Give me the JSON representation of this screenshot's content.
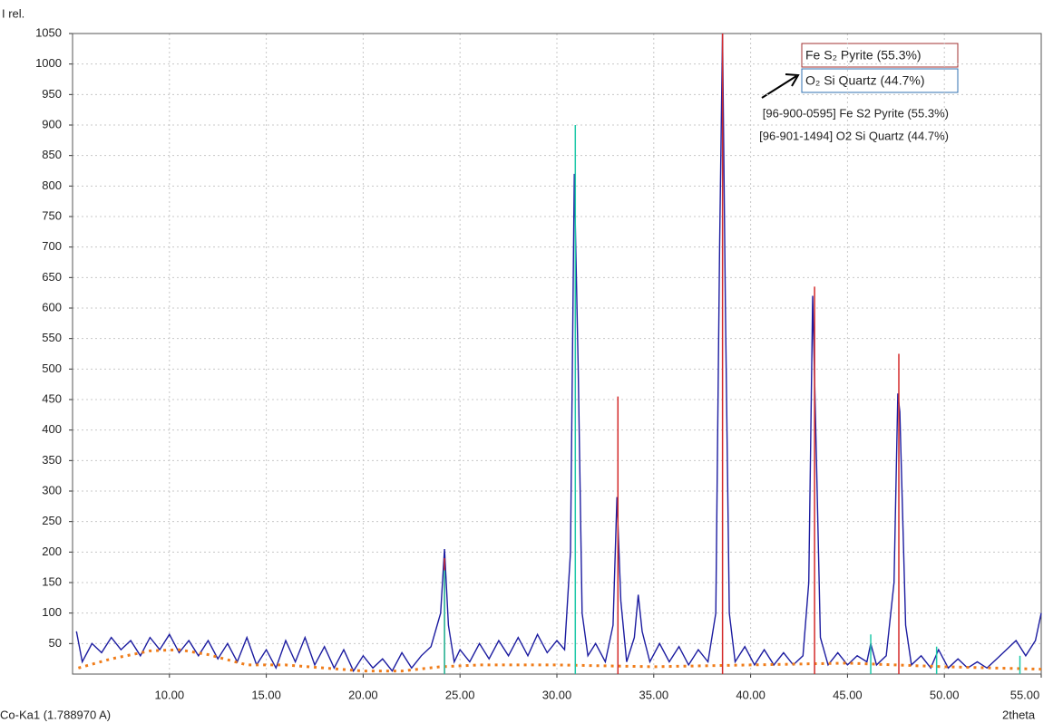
{
  "chart_data": {
    "type": "line",
    "y_label": "I rel.",
    "x_label": "2theta",
    "source_label": "Co-Ka1 (1.788970 A)",
    "xlim": [
      5,
      55
    ],
    "ylim": [
      0,
      1050
    ],
    "xticks": [
      {
        "value": 10,
        "label": "10.00"
      },
      {
        "value": 15,
        "label": "15.00"
      },
      {
        "value": 20,
        "label": "20.00"
      },
      {
        "value": 25,
        "label": "25.00"
      },
      {
        "value": 30,
        "label": "30.00"
      },
      {
        "value": 35,
        "label": "35.00"
      },
      {
        "value": 40,
        "label": "40.00"
      },
      {
        "value": 45,
        "label": "45.00"
      },
      {
        "value": 50,
        "label": "50.00"
      },
      {
        "value": 55,
        "label": "55.00"
      }
    ],
    "yticks": [
      50,
      100,
      150,
      200,
      250,
      300,
      350,
      400,
      450,
      500,
      550,
      600,
      650,
      700,
      750,
      800,
      850,
      900,
      950,
      1000,
      1050
    ],
    "grid": true,
    "series": [
      {
        "color": "#1c1ca0",
        "x": [
          5.2,
          5.5,
          6,
          6.5,
          7,
          7.5,
          8,
          8.5,
          9,
          9.5,
          10,
          10.5,
          11,
          11.5,
          12,
          12.5,
          13,
          13.5,
          14,
          14.5,
          15,
          15.5,
          16,
          16.5,
          17,
          17.5,
          18,
          18.5,
          19,
          19.5,
          20,
          20.5,
          21,
          21.5,
          22,
          22.5,
          23,
          23.5,
          24,
          24.2,
          24.4,
          24.7,
          25,
          25.5,
          26,
          26.5,
          27,
          27.5,
          28,
          28.5,
          29,
          29.5,
          30,
          30.4,
          30.7,
          30.9,
          31.1,
          31.3,
          31.6,
          32,
          32.5,
          32.9,
          33.1,
          33.3,
          33.6,
          34,
          34.2,
          34.4,
          34.8,
          35.3,
          35.8,
          36.3,
          36.8,
          37.3,
          37.8,
          38.2,
          38.4,
          38.55,
          38.7,
          38.9,
          39.2,
          39.7,
          40.2,
          40.7,
          41.2,
          41.7,
          42.2,
          42.7,
          43,
          43.2,
          43.4,
          43.6,
          44,
          44.5,
          45,
          45.5,
          46,
          46.2,
          46.5,
          47,
          47.4,
          47.6,
          47.7,
          48,
          48.3,
          48.8,
          49.3,
          49.7,
          50.2,
          50.7,
          51.2,
          51.7,
          52.2,
          52.7,
          53.2,
          53.7,
          54.2,
          54.7,
          55
        ],
        "values": [
          70,
          20,
          50,
          35,
          60,
          40,
          55,
          30,
          60,
          40,
          65,
          35,
          55,
          30,
          55,
          25,
          50,
          20,
          60,
          15,
          40,
          10,
          55,
          20,
          60,
          15,
          45,
          10,
          40,
          5,
          30,
          10,
          25,
          5,
          35,
          10,
          30,
          45,
          100,
          205,
          80,
          20,
          40,
          20,
          50,
          25,
          55,
          30,
          60,
          30,
          65,
          35,
          55,
          40,
          200,
          820,
          500,
          100,
          30,
          50,
          20,
          80,
          290,
          120,
          20,
          60,
          130,
          70,
          20,
          50,
          20,
          45,
          15,
          40,
          20,
          100,
          700,
          1050,
          600,
          100,
          20,
          45,
          15,
          40,
          15,
          35,
          15,
          30,
          150,
          620,
          350,
          60,
          15,
          35,
          15,
          30,
          20,
          50,
          15,
          30,
          150,
          460,
          430,
          80,
          15,
          30,
          10,
          40,
          10,
          25,
          10,
          20,
          10,
          25,
          40,
          55,
          30,
          55,
          100
        ]
      },
      {
        "color": "#f07d1a",
        "x": [
          5.3,
          7,
          9,
          10.5,
          12,
          14,
          16,
          18,
          20,
          22,
          24,
          26,
          30,
          35,
          40,
          45,
          50,
          55
        ],
        "values": [
          10,
          25,
          38,
          40,
          32,
          15,
          15,
          10,
          5,
          5,
          12,
          15,
          15,
          12,
          15,
          18,
          12,
          8
        ]
      }
    ],
    "phases": [
      {
        "name": "[96-900-0595] Fe S2  Pyrite (55.3%)",
        "label": "Fe S₂ Pyrite (55.3%)",
        "color": "#d42a2a",
        "x": [
          24.2,
          33.15,
          38.55,
          43.3,
          47.65
        ],
        "values": [
          190,
          455,
          1050,
          635,
          525
        ]
      },
      {
        "name": "[96-901-1494] O2 Si  Quartz (44.7%)",
        "label": "O₂ Si Quartz (44.7%)",
        "color": "#1fc8a8",
        "x": [
          24.2,
          30.95,
          46.2,
          49.6,
          53.9
        ],
        "values": [
          170,
          900,
          65,
          45,
          30
        ]
      }
    ]
  }
}
